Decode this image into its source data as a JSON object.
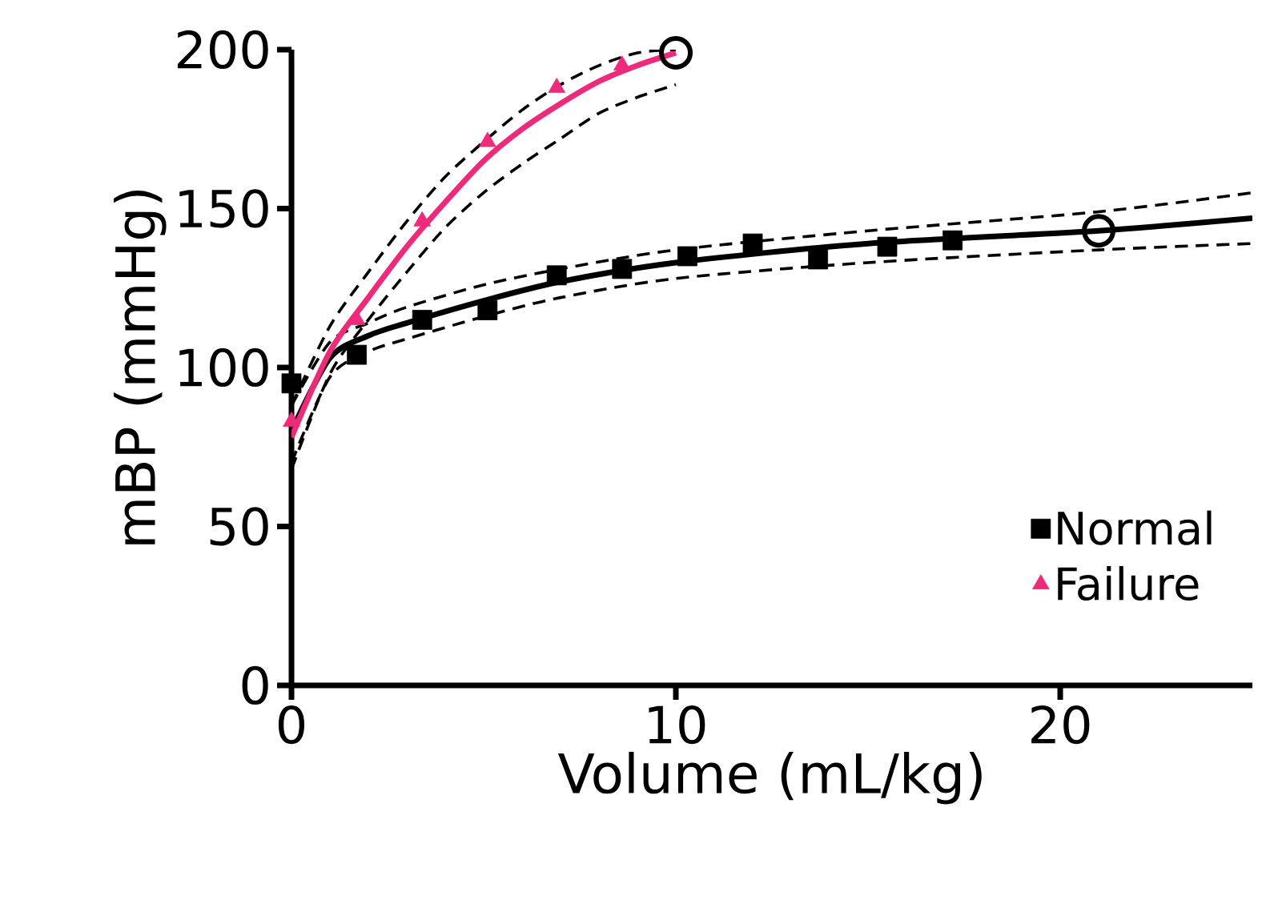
{
  "chart_data": {
    "type": "scatter",
    "xlabel": "Volume (mL/kg)",
    "ylabel": "mBP (mmHg)",
    "xlim": [
      0,
      25
    ],
    "ylim": [
      0,
      200
    ],
    "xticks": [
      0,
      10,
      20
    ],
    "yticks": [
      0,
      50,
      100,
      150,
      200
    ],
    "grid": false,
    "legend": "bottom right",
    "series": [
      {
        "name": "Normal",
        "marker": "square",
        "color": "#000000",
        "x": [
          0,
          1.7,
          3.4,
          5.1,
          6.9,
          8.6,
          10.3,
          12,
          13.7,
          15.5,
          17.2
        ],
        "values": [
          95,
          104,
          115,
          118,
          129,
          131,
          135,
          139,
          134,
          138,
          140
        ]
      },
      {
        "name": "Failure",
        "marker": "triangle",
        "color": "#ee2a7b",
        "x": [
          0,
          1.7,
          3.4,
          5.1,
          6.9,
          8.6
        ],
        "values": [
          83,
          115,
          146,
          171,
          188,
          195
        ]
      },
      {
        "type": "line",
        "color": "#000000",
        "line_style": "solid",
        "x": [
          0,
          1,
          2,
          3,
          5,
          7,
          10,
          15,
          21,
          25
        ],
        "values": [
          80,
          103,
          110,
          114,
          121,
          127,
          133,
          139,
          143,
          147
        ]
      },
      {
        "type": "line",
        "color": "#000000",
        "line_style": "dashed",
        "x": [
          0,
          1,
          2,
          3,
          5,
          7,
          10,
          15,
          21,
          25
        ],
        "values": [
          70,
          97,
          105,
          109,
          116,
          122,
          128,
          133,
          137,
          139
        ]
      },
      {
        "type": "line",
        "color": "#000000",
        "line_style": "dashed",
        "x": [
          0,
          1,
          2,
          3,
          5,
          7,
          10,
          15,
          21,
          25
        ],
        "values": [
          88,
          108,
          114,
          119,
          126,
          131,
          137,
          143,
          149,
          155
        ]
      },
      {
        "type": "line",
        "color": "#ee2a7b",
        "line_style": "solid",
        "x": [
          0,
          1,
          2,
          3,
          4,
          5,
          6,
          7,
          8,
          9,
          10
        ],
        "values": [
          78,
          105,
          122,
          138,
          152,
          165,
          175,
          183,
          190,
          195,
          199
        ]
      },
      {
        "type": "line",
        "color": "#000000",
        "line_style": "dashed",
        "x": [
          0,
          1,
          2,
          3,
          4,
          5,
          6,
          7,
          8,
          9,
          10
        ],
        "values": [
          68,
          98,
          115,
          130,
          144,
          155,
          164,
          172,
          180,
          185,
          189
        ]
      },
      {
        "type": "line",
        "color": "#000000",
        "line_style": "dashed",
        "x": [
          0,
          1,
          2,
          3,
          4,
          5,
          6,
          7,
          8,
          9,
          10
        ],
        "values": [
          88,
          113,
          130,
          146,
          160,
          171,
          181,
          189,
          195,
          199,
          200
        ]
      },
      {
        "marker": "circle",
        "color": "#000000",
        "x": [
          10,
          21
        ],
        "values": [
          199,
          143
        ]
      }
    ]
  }
}
